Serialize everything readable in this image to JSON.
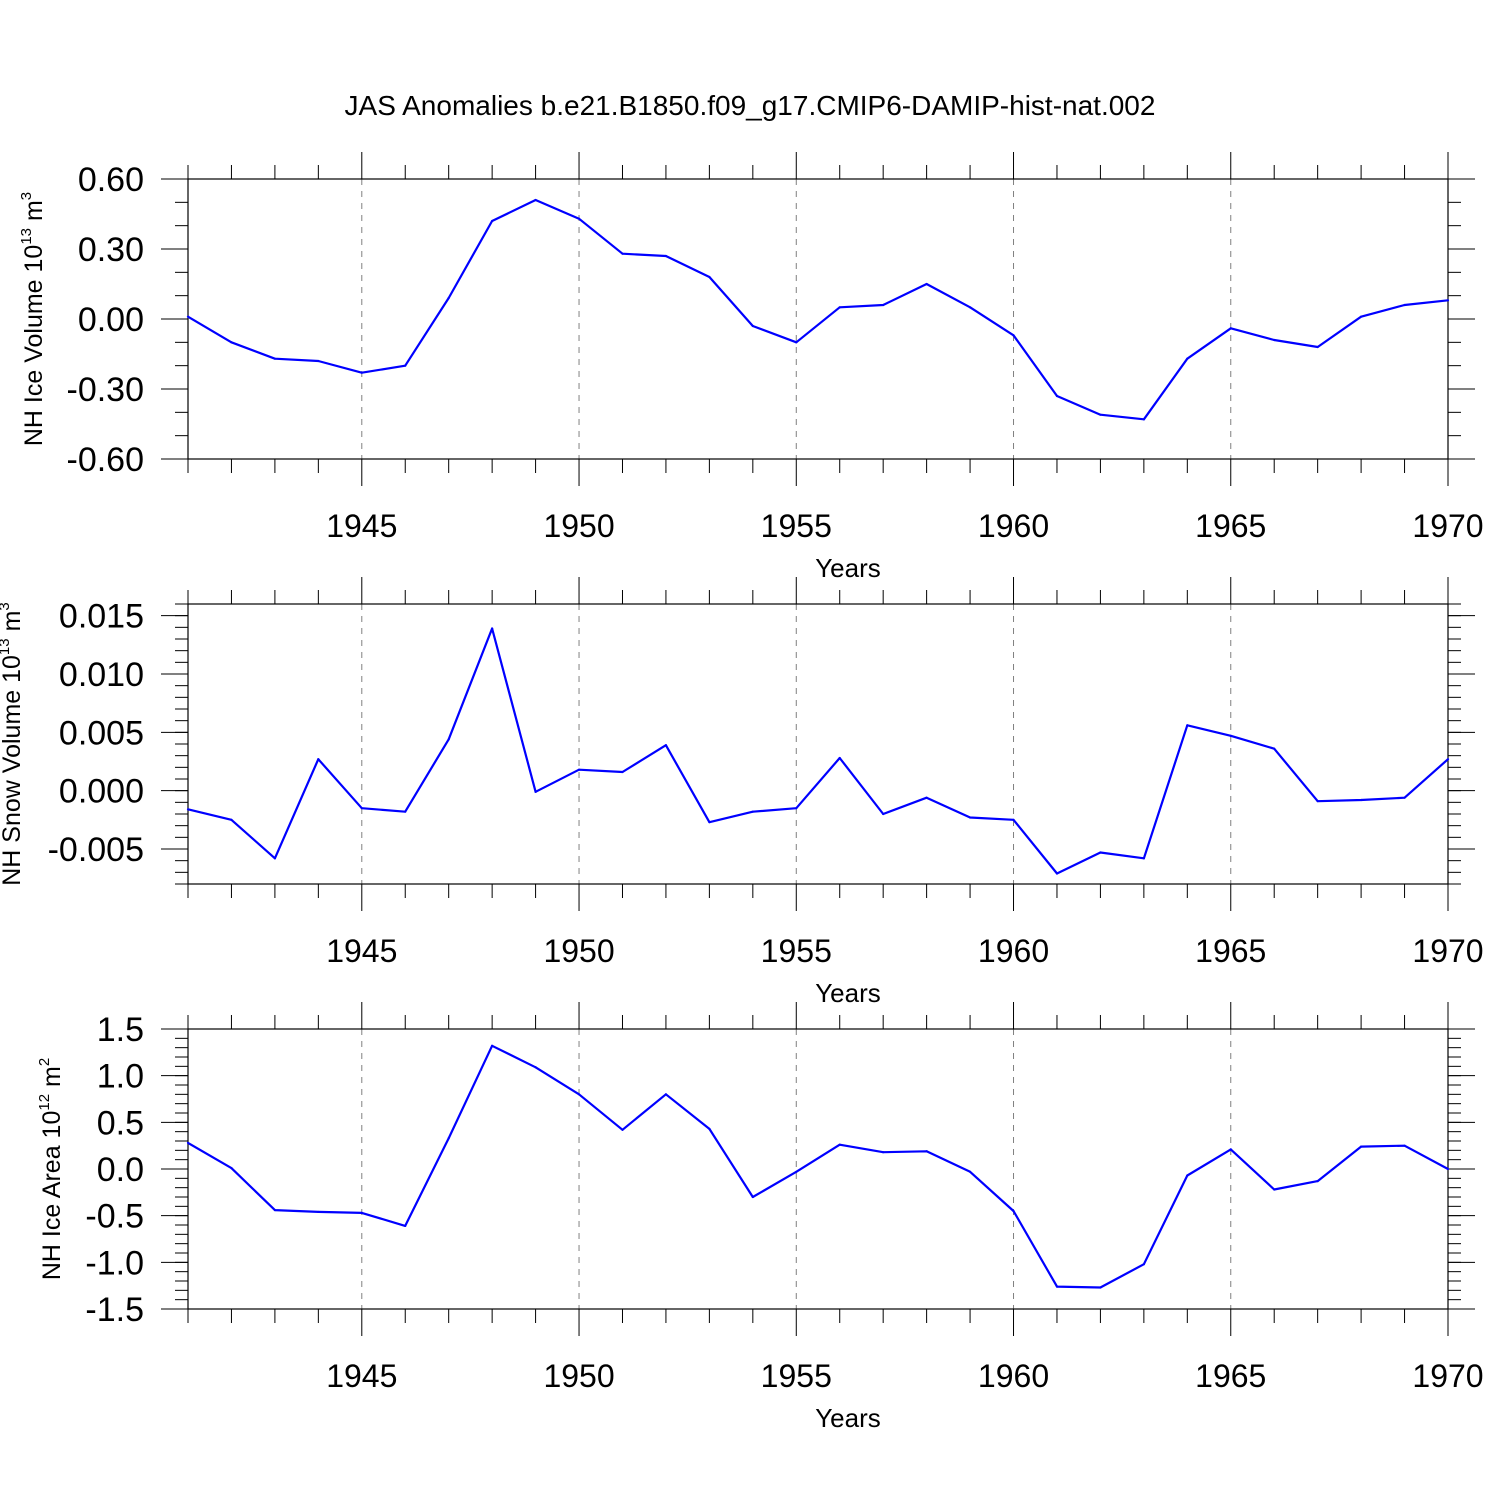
{
  "title": "JAS Anomalies b.e21.B1850.f09_g17.CMIP6-DAMIP-hist-nat.002",
  "colors": {
    "line": "#0000ff",
    "axis": "#000000",
    "grid": "#808080"
  },
  "chart_data": [
    {
      "type": "line",
      "ylabel": {
        "text": "NH Ice Volume 10",
        "sup": "13",
        "unit": "m",
        "unit_sup": "3"
      },
      "xlabel": "Years",
      "xlim": [
        1941,
        1970
      ],
      "ylim": [
        -0.6,
        0.6
      ],
      "yticks": [
        -0.6,
        -0.3,
        0.0,
        0.3,
        0.6
      ],
      "ytick_labels": [
        "-0.60",
        "-0.30",
        "0.00",
        "0.30",
        "0.60"
      ],
      "xticks": [
        1945,
        1950,
        1955,
        1960,
        1965,
        1970
      ],
      "xtick_labels": [
        "1945",
        "1950",
        "1955",
        "1960",
        "1965",
        "1970"
      ],
      "grid": "vertical dashed at major x ticks",
      "x": [
        1941,
        1942,
        1943,
        1944,
        1945,
        1946,
        1947,
        1948,
        1949,
        1950,
        1951,
        1952,
        1953,
        1954,
        1955,
        1956,
        1957,
        1958,
        1959,
        1960,
        1961,
        1962,
        1963,
        1964,
        1965,
        1966,
        1967,
        1968,
        1969,
        1970
      ],
      "values": [
        0.01,
        -0.1,
        -0.17,
        -0.18,
        -0.23,
        -0.2,
        0.09,
        0.42,
        0.51,
        0.43,
        0.28,
        0.27,
        0.18,
        -0.03,
        -0.1,
        0.05,
        0.06,
        0.15,
        0.05,
        -0.07,
        -0.33,
        -0.41,
        -0.43,
        -0.17,
        -0.04,
        -0.09,
        -0.12,
        0.01,
        0.06,
        0.08
      ]
    },
    {
      "type": "line",
      "ylabel": {
        "text": "NH Snow Volume 10",
        "sup": "13",
        "unit": "m",
        "unit_sup": "3"
      },
      "xlabel": "Years",
      "xlim": [
        1941,
        1970
      ],
      "ylim": [
        -0.008,
        0.016
      ],
      "yticks": [
        -0.005,
        0.0,
        0.005,
        0.01,
        0.015
      ],
      "ytick_labels": [
        "-0.005",
        "0.000",
        "0.005",
        "0.010",
        "0.015"
      ],
      "xticks": [
        1945,
        1950,
        1955,
        1960,
        1965,
        1970
      ],
      "xtick_labels": [
        "1945",
        "1950",
        "1955",
        "1960",
        "1965",
        "1970"
      ],
      "grid": "vertical dashed at major x ticks",
      "x": [
        1941,
        1942,
        1943,
        1944,
        1945,
        1946,
        1947,
        1948,
        1949,
        1950,
        1951,
        1952,
        1953,
        1954,
        1955,
        1956,
        1957,
        1958,
        1959,
        1960,
        1961,
        1962,
        1963,
        1964,
        1965,
        1966,
        1967,
        1968,
        1969,
        1970
      ],
      "values": [
        -0.0016,
        -0.0025,
        -0.0058,
        0.0027,
        -0.0015,
        -0.0018,
        0.0044,
        0.0139,
        -0.0001,
        0.0018,
        0.0016,
        0.0039,
        -0.0027,
        -0.0018,
        -0.0015,
        0.0028,
        -0.002,
        -0.0006,
        -0.0023,
        -0.0025,
        -0.0071,
        -0.0053,
        -0.0058,
        0.0056,
        0.0047,
        0.0036,
        -0.0009,
        -0.0008,
        -0.0006,
        0.0027
      ]
    },
    {
      "type": "line",
      "ylabel": {
        "text": "NH Ice Area 10",
        "sup": "12",
        "unit": "m",
        "unit_sup": "2"
      },
      "xlabel": "Years",
      "xlim": [
        1941,
        1970
      ],
      "ylim": [
        -1.5,
        1.5
      ],
      "yticks": [
        -1.5,
        -1.0,
        -0.5,
        0.0,
        0.5,
        1.0,
        1.5
      ],
      "ytick_labels": [
        "-1.5",
        "-1.0",
        "-0.5",
        "0.0",
        "0.5",
        "1.0",
        "1.5"
      ],
      "xticks": [
        1945,
        1950,
        1955,
        1960,
        1965,
        1970
      ],
      "xtick_labels": [
        "1945",
        "1950",
        "1955",
        "1960",
        "1965",
        "1970"
      ],
      "grid": "vertical dashed at major x ticks",
      "x": [
        1941,
        1942,
        1943,
        1944,
        1945,
        1946,
        1947,
        1948,
        1949,
        1950,
        1951,
        1952,
        1953,
        1954,
        1955,
        1956,
        1957,
        1958,
        1959,
        1960,
        1961,
        1962,
        1963,
        1964,
        1965,
        1966,
        1967,
        1968,
        1969,
        1970
      ],
      "values": [
        0.28,
        0.01,
        -0.44,
        -0.46,
        -0.47,
        -0.61,
        0.33,
        1.32,
        1.09,
        0.8,
        0.42,
        0.8,
        0.43,
        -0.3,
        -0.03,
        0.26,
        0.18,
        0.19,
        -0.03,
        -0.45,
        -1.26,
        -1.27,
        -1.02,
        -0.07,
        0.21,
        -0.22,
        -0.13,
        0.24,
        0.25,
        0.0
      ]
    }
  ]
}
